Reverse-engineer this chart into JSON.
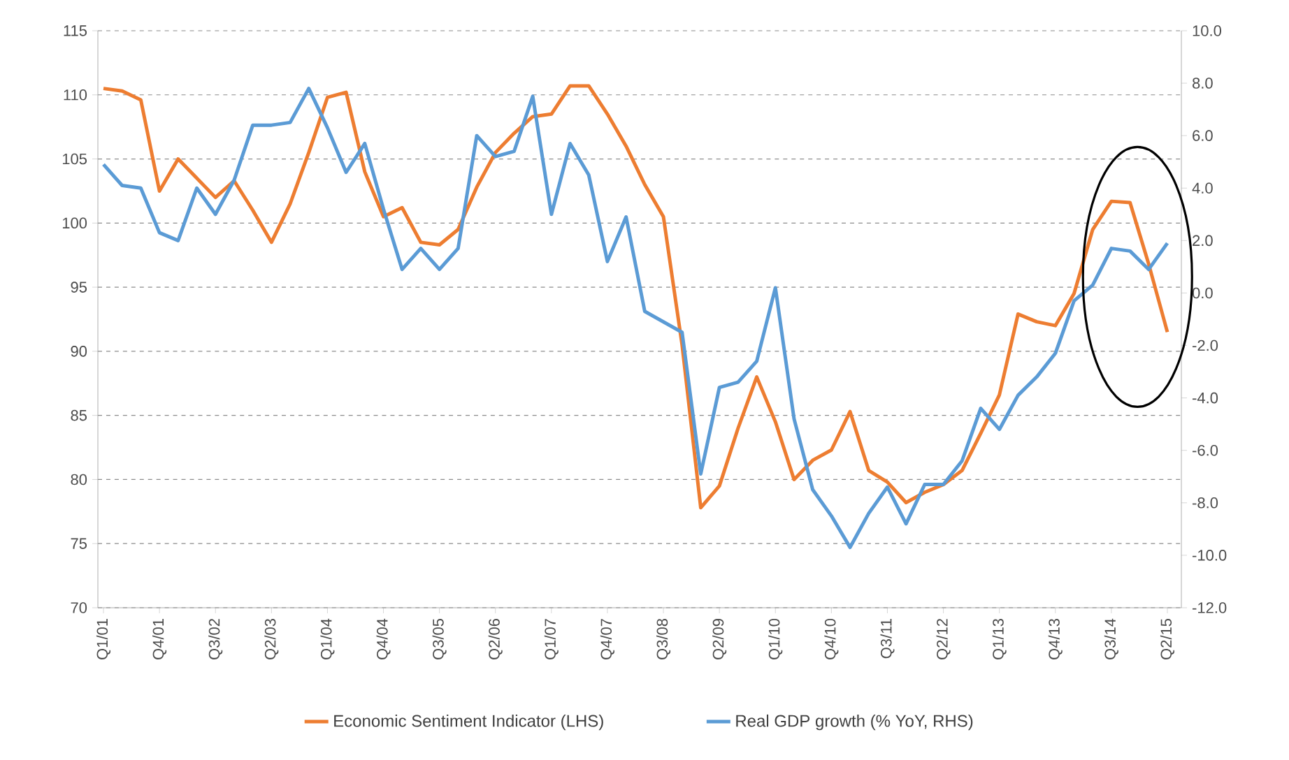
{
  "chart_data": {
    "type": "line",
    "categories": [
      "Q1/01",
      null,
      null,
      "Q4/01",
      null,
      null,
      "Q3/02",
      null,
      null,
      "Q2/03",
      null,
      null,
      "Q1/04",
      null,
      null,
      "Q4/04",
      null,
      null,
      "Q3/05",
      null,
      null,
      "Q2/06",
      null,
      null,
      "Q1/07",
      null,
      null,
      "Q4/07",
      null,
      null,
      "Q3/08",
      null,
      null,
      "Q2/09",
      null,
      null,
      "Q1/10",
      null,
      null,
      "Q4/10",
      null,
      null,
      "Q3/11",
      null,
      null,
      "Q2/12",
      null,
      null,
      "Q1/13",
      null,
      null,
      "Q4/13",
      null,
      null,
      "Q3/14",
      null,
      null,
      "Q2/15"
    ],
    "series": [
      {
        "name": "Economic Sentiment Indicator (LHS)",
        "color": "#ed7d31",
        "values": [
          110.5,
          110.3,
          109.6,
          102.5,
          105,
          103.5,
          102,
          103.3,
          101,
          98.5,
          101.5,
          105.5,
          109.8,
          110.2,
          104,
          100.5,
          101.2,
          98.5,
          98.3,
          99.5,
          102.8,
          105.5,
          107,
          108.3,
          108.5,
          110.7,
          110.7,
          108.5,
          106,
          103,
          100.5,
          90.5,
          77.8,
          79.5,
          84,
          88,
          84.5,
          80,
          81.5,
          82.3,
          85.3,
          80.7,
          79.8,
          78.2,
          79,
          79.6,
          80.7,
          83.6,
          86.6,
          92.9,
          92.3,
          92,
          94.5,
          99.5,
          101.7,
          101.6,
          96.8,
          91.5
        ]
      },
      {
        "name": "Real GDP growth (% YoY, RHS)",
        "color": "#5b9bd5",
        "axis": "y2",
        "values": [
          4.9,
          4.1,
          4.0,
          2.3,
          2.0,
          4.0,
          3.0,
          4.3,
          6.4,
          6.4,
          6.5,
          7.8,
          6.3,
          4.6,
          5.7,
          3.2,
          0.9,
          1.7,
          0.9,
          1.7,
          6.0,
          5.2,
          5.4,
          7.5,
          3.0,
          5.7,
          4.5,
          1.2,
          2.9,
          -0.7,
          -1.1,
          -1.5,
          -6.9,
          -3.6,
          -3.4,
          -2.6,
          0.2,
          -4.8,
          -7.5,
          -8.5,
          -9.7,
          -8.4,
          -7.4,
          -8.8,
          -7.3,
          -7.3,
          -6.4,
          -4.4,
          -5.2,
          -3.9,
          -3.2,
          -2.3,
          -0.3,
          0.3,
          1.7,
          1.6,
          0.9,
          1.9
        ]
      }
    ],
    "ylim": [
      70,
      115
    ],
    "yticks": [
      70,
      75,
      80,
      85,
      90,
      95,
      100,
      105,
      110,
      115
    ],
    "y2lim": [
      -12,
      10
    ],
    "y2ticks": [
      {
        "value": -12,
        "label": "-12.0"
      },
      {
        "value": -10,
        "label": "-10.0"
      },
      {
        "value": -8,
        "label": "-8.0"
      },
      {
        "value": -6,
        "label": "-6.0"
      },
      {
        "value": -4,
        "label": "-4.0"
      },
      {
        "value": -2,
        "label": "-2.0"
      },
      {
        "value": 0,
        "label": "0.0"
      },
      {
        "value": 2,
        "label": "2.0"
      },
      {
        "value": 4,
        "label": "4.0"
      },
      {
        "value": 6,
        "label": "6.0"
      },
      {
        "value": 8,
        "label": "8.0"
      },
      {
        "value": 10,
        "label": "10.0"
      }
    ],
    "grid": "y",
    "legend": "bottom",
    "marker": "none",
    "line_style": "solid"
  }
}
